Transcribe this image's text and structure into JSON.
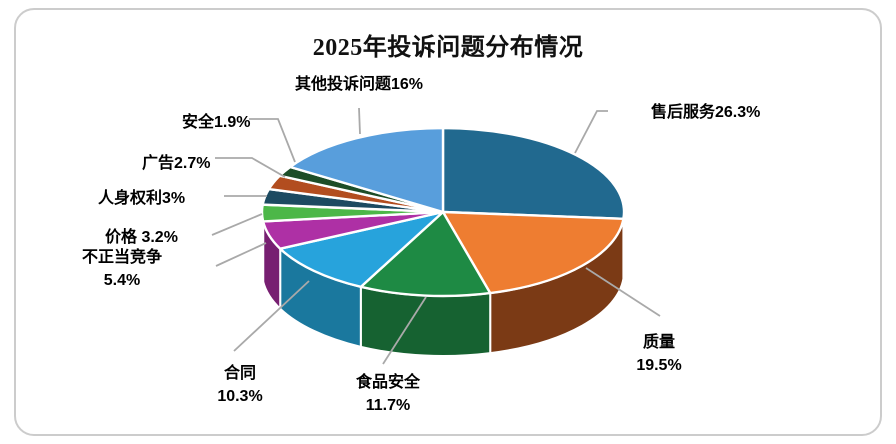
{
  "window": {
    "background_color": "#FFFFFF",
    "card_border_color": "#CCCCCC"
  },
  "chart_data": {
    "type": "pie",
    "is_3d": true,
    "title": "2025年投诉问题分布情况",
    "start_angle": "12-oclock",
    "direction": "clockwise",
    "legend_position": "none",
    "grid": false,
    "leader_line_color": "#A9A9A9",
    "slice_gap_color": "#FFFFFF",
    "categories": [
      "售后服务",
      "质量",
      "食品安全",
      "合同",
      "不正当竞争",
      "价格",
      "人身权利",
      "广告",
      "安全",
      "其他投诉问题"
    ],
    "values": [
      26.3,
      19.5,
      11.7,
      10.3,
      5.4,
      3.2,
      3.0,
      2.7,
      1.9,
      16.0
    ],
    "slices": [
      {
        "label": "售后服务",
        "value_pct": 26.3,
        "color": "#21698F",
        "side_color": "#16455F",
        "callout_lines": [
          "售后服务26.3%"
        ]
      },
      {
        "label": "质量",
        "value_pct": 19.5,
        "color": "#EE7D31",
        "side_color": "#7B3A15",
        "callout_lines": [
          "质量",
          "19.5%"
        ]
      },
      {
        "label": "食品安全",
        "value_pct": 11.7,
        "color": "#1E8A44",
        "side_color": "#166231",
        "callout_lines": [
          "食品安全",
          "11.7%"
        ]
      },
      {
        "label": "合同",
        "value_pct": 10.3,
        "color": "#27A3DC",
        "side_color": "#1A789E",
        "callout_lines": [
          "合同",
          "10.3%"
        ]
      },
      {
        "label": "不正当竞争",
        "value_pct": 5.4,
        "color": "#AE30A5",
        "side_color": "#771F71",
        "callout_lines": [
          "不正当竞争",
          "5.4%"
        ]
      },
      {
        "label": "价格",
        "value_pct": 3.2,
        "color": "#4CB748",
        "side_color": "#357F32",
        "callout_lines": [
          "价格 3.2%"
        ]
      },
      {
        "label": "人身权利",
        "value_pct": 3.0,
        "color": "#1C4A61",
        "side_color": "#12303F",
        "callout_lines": [
          "人身权利3%"
        ]
      },
      {
        "label": "广告",
        "value_pct": 2.7,
        "color": "#B24D1F",
        "side_color": "#7A3415",
        "callout_lines": [
          "广告2.7%"
        ]
      },
      {
        "label": "安全",
        "value_pct": 1.9,
        "color": "#1D4D27",
        "side_color": "#13341A",
        "callout_lines": [
          "安全1.9%"
        ]
      },
      {
        "label": "其他投诉问题",
        "value_pct": 16.0,
        "color": "#589EDC",
        "side_color": "#3F6F9B",
        "callout_lines": [
          "其他投诉问题16%"
        ]
      }
    ]
  }
}
